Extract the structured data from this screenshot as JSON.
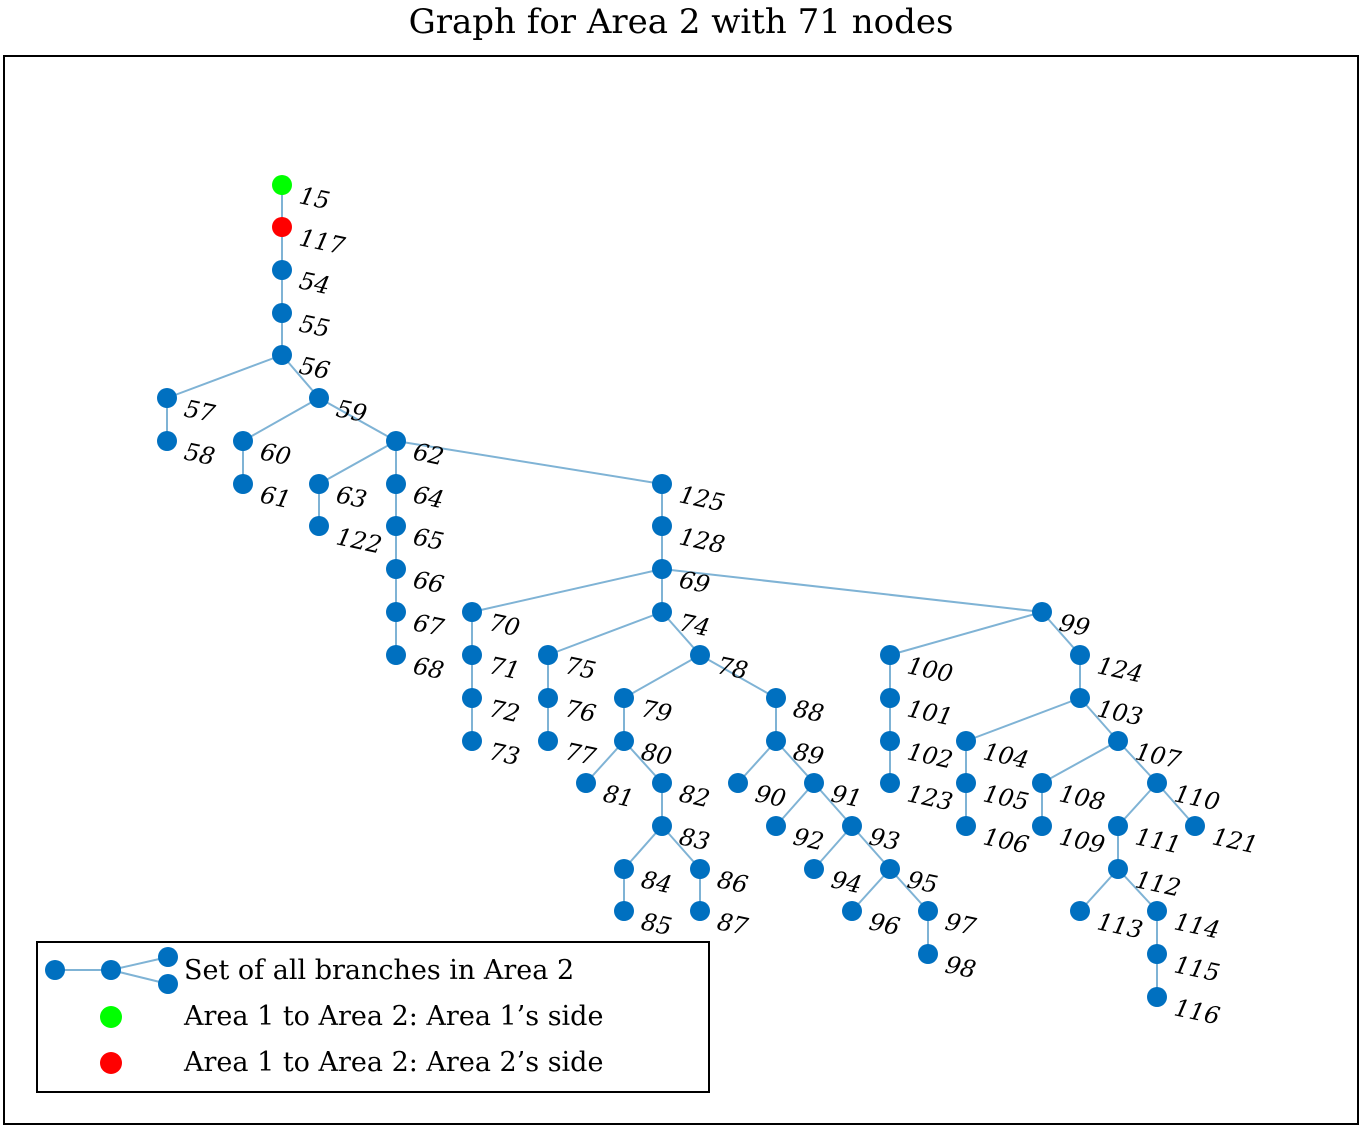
{
  "title": "Graph for Area 2 with 71 nodes",
  "colors": {
    "node": "#0070c0",
    "edge": "#7fb3d5",
    "area1_side": "#00ff00",
    "area2_side": "#ff0000",
    "frame": "#000000"
  },
  "legend": {
    "items": [
      {
        "kind": "branch",
        "label": "Set of all branches in Area 2"
      },
      {
        "kind": "area1",
        "label": "Area 1 to Area 2: Area 1’s side"
      },
      {
        "kind": "area2",
        "label": "Area 1 to Area 2: Area 2’s side"
      }
    ]
  },
  "nodes": [
    {
      "id": "15",
      "type": "area1"
    },
    {
      "id": "117",
      "type": "area2"
    },
    {
      "id": "54"
    },
    {
      "id": "55"
    },
    {
      "id": "56"
    },
    {
      "id": "57"
    },
    {
      "id": "58"
    },
    {
      "id": "59"
    },
    {
      "id": "60"
    },
    {
      "id": "61"
    },
    {
      "id": "62"
    },
    {
      "id": "63"
    },
    {
      "id": "122"
    },
    {
      "id": "64"
    },
    {
      "id": "65"
    },
    {
      "id": "66"
    },
    {
      "id": "67"
    },
    {
      "id": "68"
    },
    {
      "id": "125"
    },
    {
      "id": "128"
    },
    {
      "id": "69"
    },
    {
      "id": "70"
    },
    {
      "id": "71"
    },
    {
      "id": "72"
    },
    {
      "id": "73"
    },
    {
      "id": "74"
    },
    {
      "id": "75"
    },
    {
      "id": "76"
    },
    {
      "id": "77"
    },
    {
      "id": "78"
    },
    {
      "id": "79"
    },
    {
      "id": "80"
    },
    {
      "id": "81"
    },
    {
      "id": "82"
    },
    {
      "id": "83"
    },
    {
      "id": "84"
    },
    {
      "id": "85"
    },
    {
      "id": "86"
    },
    {
      "id": "87"
    },
    {
      "id": "88"
    },
    {
      "id": "89"
    },
    {
      "id": "90"
    },
    {
      "id": "91"
    },
    {
      "id": "92"
    },
    {
      "id": "93"
    },
    {
      "id": "94"
    },
    {
      "id": "95"
    },
    {
      "id": "96"
    },
    {
      "id": "97"
    },
    {
      "id": "98"
    },
    {
      "id": "99"
    },
    {
      "id": "100"
    },
    {
      "id": "101"
    },
    {
      "id": "102"
    },
    {
      "id": "123"
    },
    {
      "id": "124"
    },
    {
      "id": "103"
    },
    {
      "id": "104"
    },
    {
      "id": "105"
    },
    {
      "id": "106"
    },
    {
      "id": "107"
    },
    {
      "id": "108"
    },
    {
      "id": "109"
    },
    {
      "id": "110"
    },
    {
      "id": "121"
    },
    {
      "id": "111"
    },
    {
      "id": "112"
    },
    {
      "id": "113"
    },
    {
      "id": "114"
    },
    {
      "id": "115"
    },
    {
      "id": "116"
    }
  ],
  "edges": [
    [
      "15",
      "117"
    ],
    [
      "117",
      "54"
    ],
    [
      "54",
      "55"
    ],
    [
      "55",
      "56"
    ],
    [
      "56",
      "57"
    ],
    [
      "57",
      "58"
    ],
    [
      "56",
      "59"
    ],
    [
      "59",
      "60"
    ],
    [
      "60",
      "61"
    ],
    [
      "59",
      "62"
    ],
    [
      "62",
      "63"
    ],
    [
      "63",
      "122"
    ],
    [
      "62",
      "64"
    ],
    [
      "64",
      "65"
    ],
    [
      "65",
      "66"
    ],
    [
      "66",
      "67"
    ],
    [
      "67",
      "68"
    ],
    [
      "62",
      "125"
    ],
    [
      "125",
      "128"
    ],
    [
      "128",
      "69"
    ],
    [
      "69",
      "70"
    ],
    [
      "70",
      "71"
    ],
    [
      "71",
      "72"
    ],
    [
      "72",
      "73"
    ],
    [
      "69",
      "74"
    ],
    [
      "74",
      "75"
    ],
    [
      "75",
      "76"
    ],
    [
      "76",
      "77"
    ],
    [
      "74",
      "78"
    ],
    [
      "78",
      "79"
    ],
    [
      "79",
      "80"
    ],
    [
      "80",
      "81"
    ],
    [
      "80",
      "82"
    ],
    [
      "82",
      "83"
    ],
    [
      "83",
      "84"
    ],
    [
      "84",
      "85"
    ],
    [
      "83",
      "86"
    ],
    [
      "86",
      "87"
    ],
    [
      "78",
      "88"
    ],
    [
      "88",
      "89"
    ],
    [
      "89",
      "90"
    ],
    [
      "89",
      "91"
    ],
    [
      "91",
      "92"
    ],
    [
      "91",
      "93"
    ],
    [
      "93",
      "94"
    ],
    [
      "93",
      "95"
    ],
    [
      "95",
      "96"
    ],
    [
      "95",
      "97"
    ],
    [
      "97",
      "98"
    ],
    [
      "69",
      "99"
    ],
    [
      "99",
      "100"
    ],
    [
      "100",
      "101"
    ],
    [
      "101",
      "102"
    ],
    [
      "102",
      "123"
    ],
    [
      "99",
      "124"
    ],
    [
      "124",
      "103"
    ],
    [
      "103",
      "104"
    ],
    [
      "104",
      "105"
    ],
    [
      "105",
      "106"
    ],
    [
      "103",
      "107"
    ],
    [
      "107",
      "108"
    ],
    [
      "108",
      "109"
    ],
    [
      "107",
      "110"
    ],
    [
      "110",
      "121"
    ],
    [
      "110",
      "111"
    ],
    [
      "111",
      "112"
    ],
    [
      "112",
      "113"
    ],
    [
      "112",
      "114"
    ],
    [
      "114",
      "115"
    ],
    [
      "115",
      "116"
    ]
  ]
}
